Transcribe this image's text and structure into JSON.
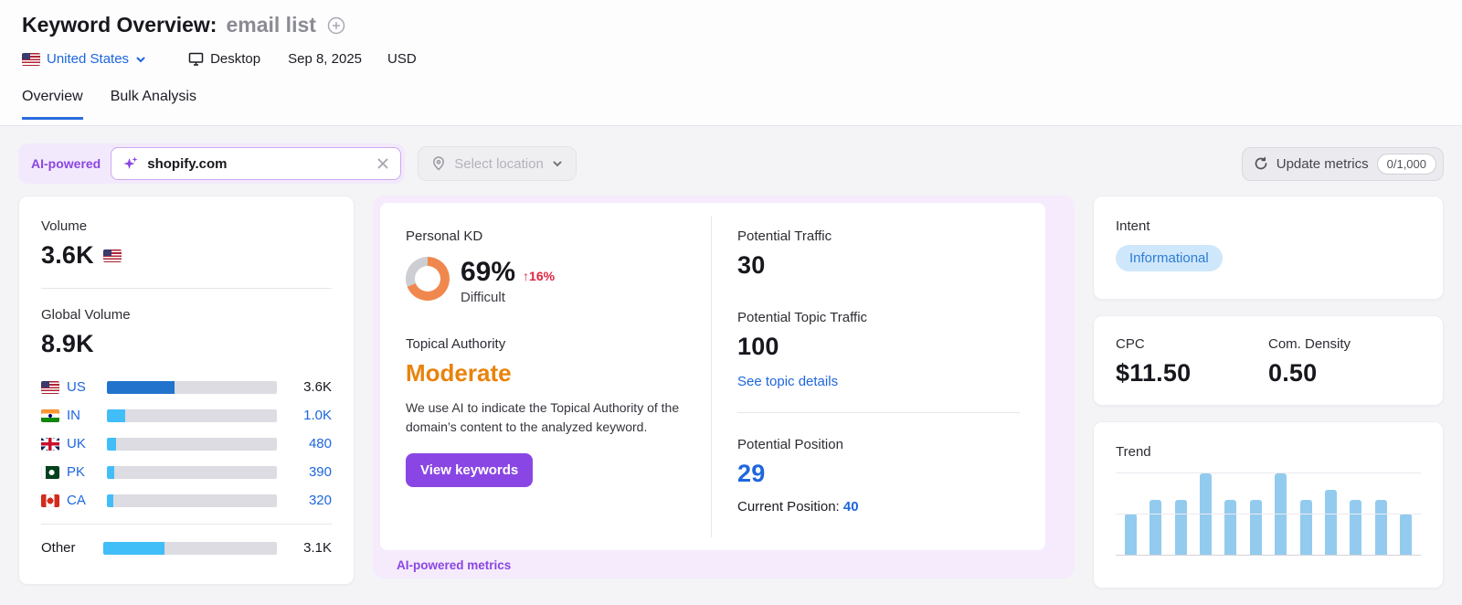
{
  "colors": {
    "purple": "#8a46e4",
    "link": "#1d66dd",
    "bar_dark": "#2273cc",
    "bar_light": "#41bdf8",
    "trend_blue": "#93cbee",
    "kd_orange": "#f0884e",
    "kd_track": "#cdced4",
    "orange_text": "#e8830e",
    "red": "#e0233e",
    "badge_bg": "#cfe7fb",
    "badge_text": "#2e7cd6"
  },
  "header": {
    "title": "Keyword Overview:",
    "keyword": "email list",
    "location": "United States",
    "device": "Desktop",
    "date": "Sep 8, 2025",
    "currency": "USD"
  },
  "tabs": {
    "overview": "Overview",
    "bulk_analysis": "Bulk Analysis"
  },
  "toolbar": {
    "ai_badge": "AI-powered",
    "domain_value": "shopify.com",
    "location_placeholder": "Select location",
    "update_label": "Update metrics",
    "quota": "0/1,000"
  },
  "volume_card": {
    "volume_label": "Volume",
    "volume_value": "3.6K",
    "global_label": "Global Volume",
    "global_value": "8.9K",
    "countries": [
      {
        "code": "US",
        "value": "3.6K",
        "pct": 40,
        "flag": "us",
        "bar": "dark",
        "value_style": "dark",
        "code_link": true,
        "divider_before": false
      },
      {
        "code": "IN",
        "value": "1.0K",
        "pct": 11,
        "flag": "in",
        "bar": "light",
        "value_style": "link",
        "code_link": true,
        "divider_before": false
      },
      {
        "code": "UK",
        "value": "480",
        "pct": 5.5,
        "flag": "uk",
        "bar": "light",
        "value_style": "link",
        "code_link": true,
        "divider_before": false
      },
      {
        "code": "PK",
        "value": "390",
        "pct": 4.5,
        "flag": "pk",
        "bar": "light",
        "value_style": "link",
        "code_link": true,
        "divider_before": false
      },
      {
        "code": "CA",
        "value": "320",
        "pct": 3.6,
        "flag": "ca",
        "bar": "light",
        "value_style": "link",
        "code_link": true,
        "divider_before": false
      },
      {
        "code": "Other",
        "value": "3.1K",
        "pct": 35,
        "flag": "",
        "bar": "light",
        "value_style": "dark",
        "code_link": false,
        "divider_before": true
      }
    ]
  },
  "kd_card": {
    "label": "Personal KD",
    "percent": "69%",
    "percent_value": 69,
    "change": "↑16%",
    "difficulty": "Difficult",
    "topical_label": "Topical Authority",
    "topical_value": "Moderate",
    "description": "We use AI to indicate the Topical Authority of the domain’s content to the analyzed keyword.",
    "button_label": "View keywords",
    "footer": "AI-powered metrics"
  },
  "potential": {
    "traffic_label": "Potential Traffic",
    "traffic_value": "30",
    "topic_traffic_label": "Potential Topic Traffic",
    "topic_traffic_value": "100",
    "topic_link": "See topic details",
    "position_label": "Potential Position",
    "position_value": "29",
    "current_position_label": "Current Position:",
    "current_position_value": "40"
  },
  "intent_card": {
    "label": "Intent",
    "badge": "Informational"
  },
  "cpc_card": {
    "cpc_label": "CPC",
    "cpc_value": "$11.50",
    "density_label": "Com. Density",
    "density_value": "0.50"
  },
  "trend_card": {
    "label": "Trend"
  },
  "chart_data": {
    "type": "bar",
    "title": "Trend",
    "categories": [
      "1",
      "2",
      "3",
      "4",
      "5",
      "6",
      "7",
      "8",
      "9",
      "10",
      "11",
      "12"
    ],
    "values": [
      51,
      67,
      67,
      100,
      67,
      67,
      100,
      67,
      80,
      67,
      67,
      51
    ],
    "ylim": [
      0,
      100
    ],
    "grid": true,
    "gridlines_pct": [
      100,
      50
    ],
    "legend": "none"
  }
}
